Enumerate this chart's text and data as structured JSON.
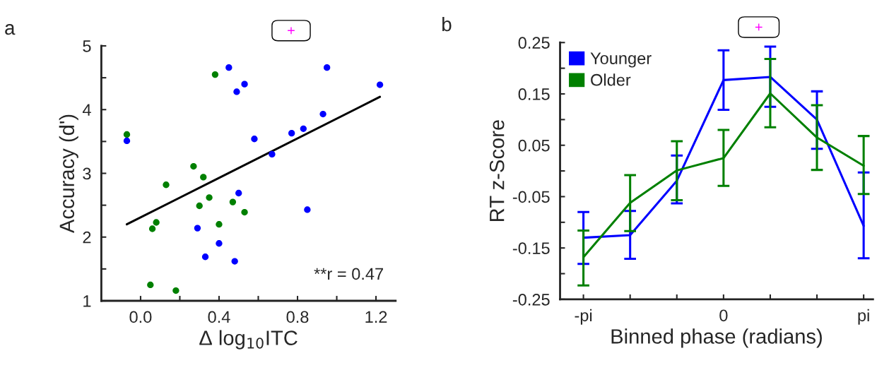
{
  "chart_data": [
    {
      "type": "scatter",
      "xlabel": "Δ log$_{10}$ITC",
      "ylabel": "Accuracy (d')",
      "xlim": [
        -0.2,
        1.3
      ],
      "xticks": [
        {
          "value": 0.0,
          "label": "0.0"
        },
        {
          "value": 0.2,
          "label": null
        },
        {
          "value": 0.4,
          "label": "0.4"
        },
        {
          "value": 0.6,
          "label": null
        },
        {
          "value": 0.8,
          "label": "0.8"
        },
        {
          "value": 1.0,
          "label": null
        },
        {
          "value": 1.2,
          "label": "1.2"
        }
      ],
      "ylim": [
        1,
        5
      ],
      "yticks": [
        1,
        {
          "value": 1.5,
          "label": null
        },
        2,
        {
          "value": 2.5,
          "label": null
        },
        3,
        {
          "value": 3.5,
          "label": null
        },
        4,
        {
          "value": 4.5,
          "label": null
        },
        5
      ],
      "marker": "circle",
      "grid": false,
      "series": [
        {
          "color": "#0000ff",
          "x": [
            -0.07,
            0.45,
            0.95,
            0.53,
            0.49,
            0.93,
            0.83,
            0.77,
            0.58,
            0.67,
            0.5,
            0.85,
            0.29,
            0.4,
            0.33,
            0.48,
            1.22
          ],
          "values": [
            3.51,
            4.66,
            4.66,
            4.4,
            4.28,
            3.93,
            3.7,
            3.63,
            3.54,
            3.3,
            2.69,
            2.43,
            2.14,
            1.9,
            1.69,
            1.62,
            4.39
          ]
        },
        {
          "color": "#008000",
          "x": [
            -0.07,
            0.38,
            0.27,
            0.32,
            0.13,
            0.35,
            0.3,
            0.47,
            0.53,
            0.08,
            0.06,
            0.4,
            0.05,
            0.18
          ],
          "values": [
            3.61,
            4.55,
            3.11,
            2.94,
            2.82,
            2.62,
            2.49,
            2.55,
            2.39,
            2.23,
            2.13,
            2.2,
            1.25,
            1.16
          ]
        },
        {
          "type": "line",
          "marker": "none",
          "color": "#000000",
          "x": [
            -0.07,
            1.22
          ],
          "values": [
            2.2,
            4.2
          ]
        }
      ],
      "annotations": [
        "a",
        "**r = 0.47"
      ]
    },
    {
      "type": "line",
      "xlabel": "Binned phase (radians)",
      "ylabel": "RT z-Score",
      "categories": [
        "-pi",
        null,
        null,
        "0",
        null,
        null,
        "pi"
      ],
      "ylim": [
        -0.25,
        0.25
      ],
      "yticks": [
        -0.25,
        {
          "value": -0.2,
          "label": null
        },
        -0.15,
        {
          "value": -0.1,
          "label": null
        },
        -0.05,
        {
          "value": 0,
          "label": null
        },
        0.05,
        {
          "value": 0.1,
          "label": null
        },
        0.15,
        {
          "value": 0.2,
          "label": null
        },
        0.25
      ],
      "marker": "none",
      "line_style": "solid",
      "grid": false,
      "legend": "top left",
      "series": [
        {
          "name": "Younger",
          "color": "#0000ff",
          "values": [
            -0.13,
            -0.125,
            -0.019,
            0.177,
            0.183,
            0.1,
            -0.107
          ],
          "errors": [
            [
              -0.181,
              -0.08
            ],
            [
              -0.171,
              -0.078
            ],
            [
              -0.063,
              0.03
            ],
            [
              0.119,
              0.235
            ],
            [
              0.125,
              0.242
            ],
            [
              0.043,
              0.155
            ],
            [
              -0.17,
              -0.003
            ]
          ]
        },
        {
          "name": "Older",
          "color": "#008000",
          "values": [
            -0.168,
            -0.062,
            0.001,
            0.025,
            0.151,
            0.065,
            0.01
          ],
          "errors": [
            [
              -0.223,
              -0.116
            ],
            [
              -0.117,
              -0.008
            ],
            [
              -0.057,
              0.058
            ],
            [
              -0.029,
              0.08
            ],
            [
              0.085,
              0.218
            ],
            [
              0.002,
              0.128
            ],
            [
              -0.045,
              0.068
            ]
          ]
        }
      ],
      "annotations": [
        "b"
      ]
    }
  ]
}
